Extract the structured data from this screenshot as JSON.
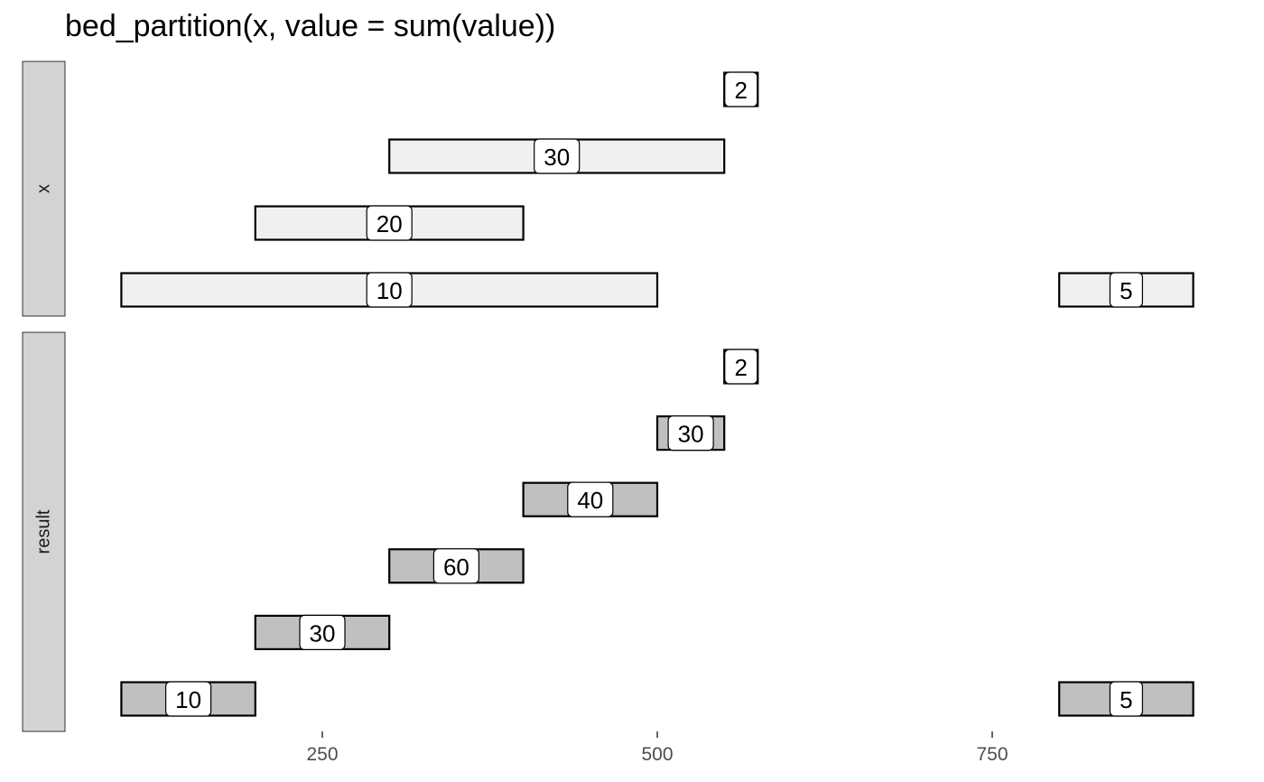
{
  "chart_data": {
    "type": "interval",
    "title": "bed_partition(x, value = sum(value))",
    "xlabel": "",
    "ylabel": "",
    "xlim": [
      50,
      920
    ],
    "x_ticks": [
      250,
      500,
      750
    ],
    "grid": false,
    "panels": [
      {
        "name": "x",
        "intervals": [
          {
            "start": 550,
            "end": 575,
            "value": 2,
            "row": 4
          },
          {
            "start": 300,
            "end": 550,
            "value": 30,
            "row": 3
          },
          {
            "start": 200,
            "end": 400,
            "value": 20,
            "row": 2
          },
          {
            "start": 100,
            "end": 500,
            "value": 10,
            "row": 1
          },
          {
            "start": 800,
            "end": 900,
            "value": 5,
            "row": 1
          }
        ]
      },
      {
        "name": "result",
        "intervals": [
          {
            "start": 550,
            "end": 575,
            "value": 2,
            "row": 6
          },
          {
            "start": 500,
            "end": 550,
            "value": 30,
            "row": 5
          },
          {
            "start": 400,
            "end": 500,
            "value": 40,
            "row": 4
          },
          {
            "start": 300,
            "end": 400,
            "value": 60,
            "row": 3
          },
          {
            "start": 200,
            "end": 300,
            "value": 30,
            "row": 2
          },
          {
            "start": 100,
            "end": 200,
            "value": 10,
            "row": 1
          },
          {
            "start": 800,
            "end": 900,
            "value": 5,
            "row": 1
          }
        ]
      }
    ],
    "colors": {
      "x_fill": "#f0f0f0",
      "result_fill": "#c0c0c0",
      "strip_fill": "#d3d3d3",
      "label_fill": "#ffffff"
    }
  }
}
